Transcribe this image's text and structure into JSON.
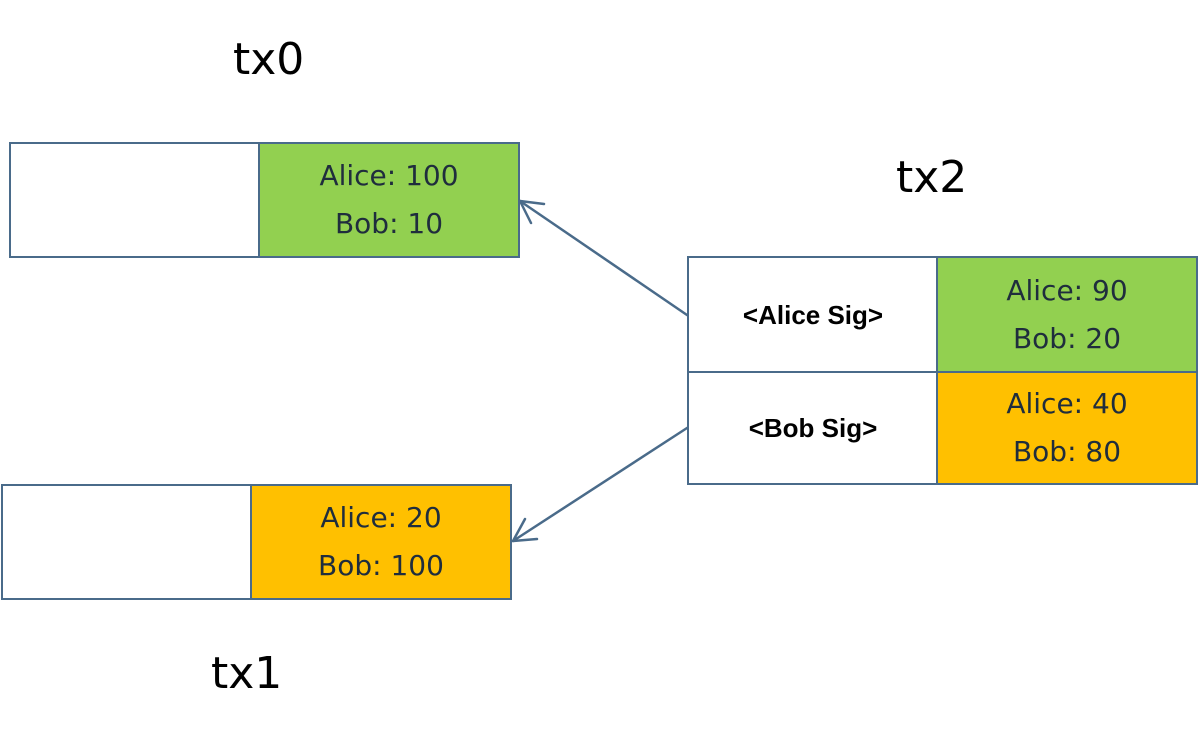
{
  "colors": {
    "border": "#4a6b8a",
    "green": "#92d050",
    "orange": "#ffc000",
    "arrow": "#4a6b8a"
  },
  "tx0": {
    "title": "tx0",
    "input": "",
    "output": {
      "line1": "Alice: 100",
      "line2": "Bob: 10"
    }
  },
  "tx1": {
    "title": "tx1",
    "input": "",
    "output": {
      "line1": "Alice: 20",
      "line2": "Bob: 100"
    }
  },
  "tx2": {
    "title": "tx2",
    "rows": [
      {
        "input": "<Alice Sig>",
        "line1": "Alice: 90",
        "line2": "Bob: 20"
      },
      {
        "input": "<Bob Sig>",
        "line1": "Alice: 40",
        "line2": "Bob: 80"
      }
    ]
  }
}
